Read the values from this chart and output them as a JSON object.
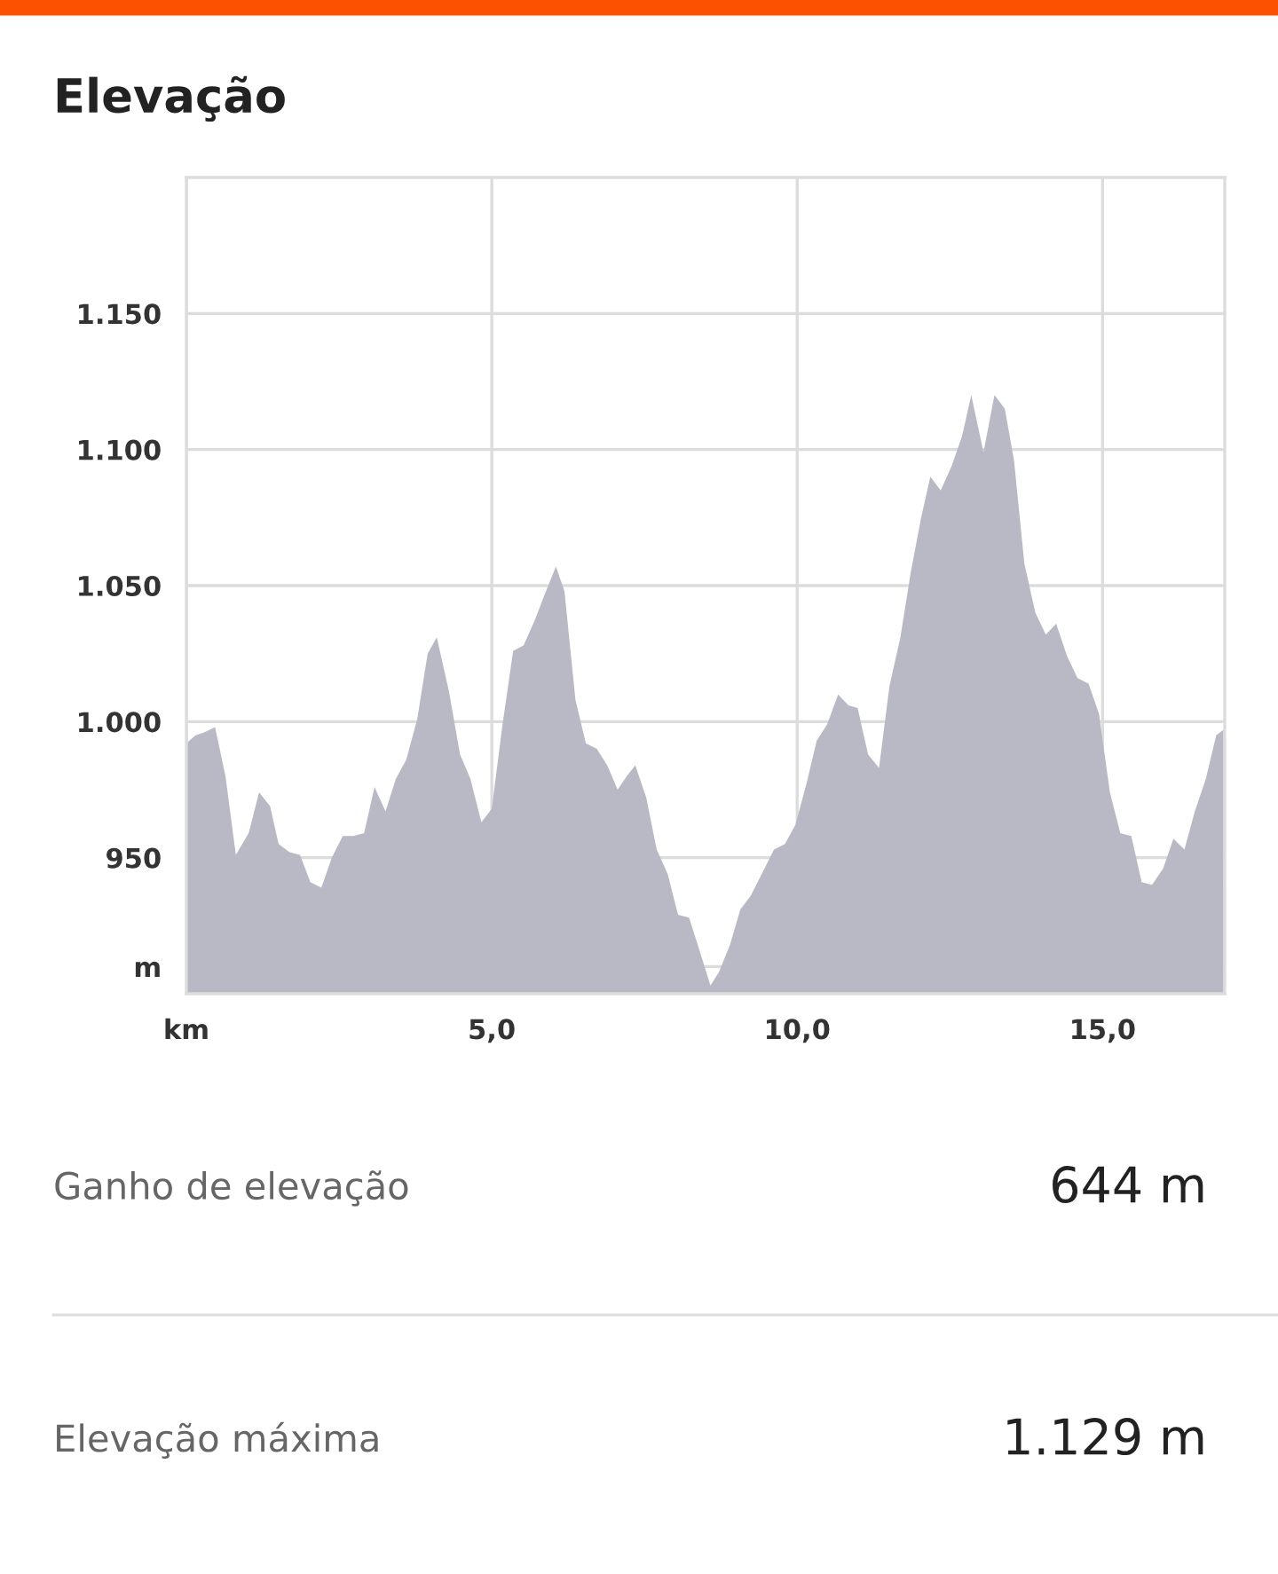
{
  "chart_data": {
    "type": "area",
    "title": "Elevação",
    "x": [
      0,
      0.15,
      0.29,
      0.47,
      0.64,
      0.81,
      1.02,
      1.19,
      1.37,
      1.51,
      1.69,
      1.86,
      2.03,
      2.21,
      2.38,
      2.56,
      2.73,
      2.91,
      3.08,
      3.26,
      3.43,
      3.6,
      3.78,
      3.95,
      4.1,
      4.3,
      4.48,
      4.65,
      4.83,
      5.0,
      5.17,
      5.35,
      5.52,
      5.7,
      5.87,
      6.05,
      6.19,
      6.37,
      6.54,
      6.72,
      6.89,
      7.06,
      7.21,
      7.35,
      7.53,
      7.7,
      7.88,
      8.05,
      8.23,
      8.4,
      8.58,
      8.72,
      8.9,
      9.07,
      9.24,
      9.42,
      9.62,
      9.8,
      9.97,
      10.15,
      10.32,
      10.49,
      10.67,
      10.84,
      10.99,
      11.16,
      11.34,
      11.51,
      11.69,
      11.86,
      12.03,
      12.18,
      12.35,
      12.53,
      12.7,
      12.85,
      13.05,
      13.23,
      13.4,
      13.55,
      13.72,
      13.9,
      14.07,
      14.24,
      14.42,
      14.59,
      14.77,
      14.94,
      15.12,
      15.29,
      15.47,
      15.64,
      15.81,
      15.99,
      16.16,
      16.34,
      16.51,
      16.69,
      16.86,
      16.98
    ],
    "series": [
      {
        "color": "#b9b9c5",
        "values": [
          992,
          995,
          996,
          998,
          980,
          951,
          959,
          974,
          969,
          955,
          952,
          951,
          941,
          939,
          950,
          958,
          958,
          959,
          976,
          967,
          979,
          986,
          1001,
          1025,
          1031,
          1011,
          988,
          979,
          963,
          968,
          998,
          1026,
          1028,
          1037,
          1047,
          1057,
          1048,
          1008,
          992,
          990,
          984,
          975,
          980,
          984,
          972,
          953,
          944,
          929,
          928,
          916,
          903,
          908,
          918,
          931,
          936,
          944,
          953,
          955,
          962,
          977,
          993,
          999,
          1010,
          1006,
          1005,
          988,
          983,
          1013,
          1031,
          1055,
          1075,
          1090,
          1085,
          1094,
          1105,
          1120,
          1099,
          1120,
          1115,
          1096,
          1058,
          1040,
          1032,
          1036,
          1024,
          1016,
          1014,
          1003,
          974,
          959,
          958,
          941,
          940,
          946,
          957,
          953,
          967,
          979,
          995,
          997
        ]
      }
    ],
    "xlim": [
      0,
      17.0
    ],
    "xticks": [
      {
        "value": 0,
        "label": "km"
      },
      {
        "value": 5,
        "label": "5,0"
      },
      {
        "value": 10,
        "label": "10,0"
      },
      {
        "value": 15,
        "label": "15,0"
      }
    ],
    "ylim": [
      900,
      1200
    ],
    "yticks": [
      {
        "value": 910,
        "label": "m"
      },
      {
        "value": 950,
        "label": "950"
      },
      {
        "value": 1000,
        "label": "1.000"
      },
      {
        "value": 1050,
        "label": "1.050"
      },
      {
        "value": 1100,
        "label": "1.100"
      },
      {
        "value": 1150,
        "label": "1.150"
      }
    ],
    "grid": true,
    "annotations": [
      "Ganho de elevação",
      "644 m",
      "Elevação máxima",
      "1.129 m"
    ]
  }
}
